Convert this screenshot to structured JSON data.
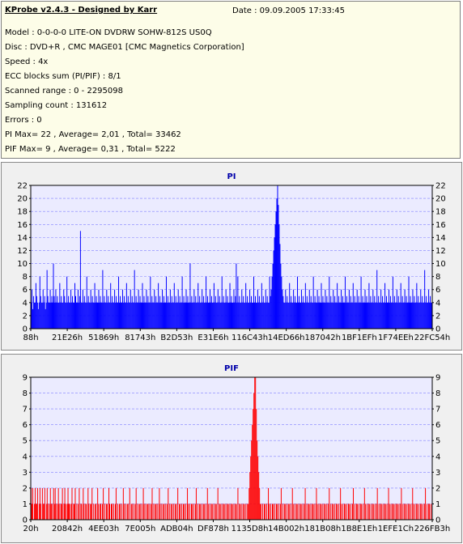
{
  "info": {
    "title": "KProbe v2.4.3 - Designed by Karr",
    "date": "Date : 09.09.2005 17:33:45",
    "lines": [
      "Model : 0-0-0-0 LITE-ON DVDRW SOHW-812S  US0Q",
      "Disc : DVD+R , CMC MAGE01 [CMC Magnetics Corporation]",
      "Speed : 4x",
      "ECC blocks sum (PI/PIF) : 8/1",
      "Scanned range : 0 - 2295098",
      "Sampling count : 131612",
      "Errors : 0",
      "PI Max= 22 , Average= 2,01 , Total= 33462",
      "PIF Max= 9 , Average= 0,31 , Total= 5222"
    ]
  },
  "colors": {
    "info_bg": "#fdfde8",
    "panel_bg": "#f0f0f0",
    "plot_bg": "#ebebff",
    "pi_bar": "#0000ff",
    "pif_bar": "#ff0000",
    "grid": "#8080ff",
    "title": "#0000aa"
  },
  "chart_data": [
    {
      "type": "bar",
      "title": "PI",
      "xlabel": "",
      "ylabel": "",
      "ylim": [
        0,
        22
      ],
      "yticks": [
        0,
        2,
        4,
        6,
        8,
        10,
        12,
        14,
        16,
        18,
        20,
        22
      ],
      "x_tick_labels": [
        "88h",
        "21E26h",
        "51869h",
        "81743h",
        "B2D53h",
        "E31E6h",
        "116C43h",
        "14ED66h",
        "187042h",
        "1BF1EFh",
        "1F74EEh",
        "22FC54h"
      ],
      "x_range": [
        0,
        2295098
      ],
      "grid": "horizontal dashed",
      "baseline_level": 4,
      "peak_position": 1372518,
      "peak_value": 22,
      "series": [
        {
          "values": [
            4,
            6,
            3,
            5,
            4,
            4,
            7,
            5,
            4,
            3,
            4,
            8,
            5,
            4,
            4,
            6,
            4,
            5,
            3,
            4,
            9,
            5,
            4,
            4,
            6,
            4,
            5,
            4,
            10,
            5,
            4,
            6,
            4,
            5,
            4,
            4,
            7,
            4,
            5,
            4,
            4,
            6,
            5,
            4,
            4,
            8,
            4,
            5,
            4,
            4,
            6,
            4,
            5,
            4,
            4,
            7,
            5,
            4,
            4,
            6,
            4,
            5,
            15,
            4,
            4,
            6,
            4,
            5,
            4,
            4,
            8,
            4,
            5,
            4,
            4,
            6,
            4,
            5,
            4,
            4,
            7,
            4,
            5,
            4,
            4,
            6,
            4,
            5,
            4,
            4,
            9,
            4,
            5,
            4,
            4,
            6,
            4,
            5,
            4,
            4,
            7,
            4,
            5,
            4,
            4,
            6,
            4,
            5,
            4,
            4,
            8,
            4,
            5,
            4,
            4,
            6,
            4,
            5,
            4,
            4,
            7,
            4,
            5,
            4,
            4,
            6,
            4,
            5,
            4,
            4,
            9,
            4,
            5,
            4,
            4,
            6,
            4,
            5,
            4,
            4,
            7,
            4,
            5,
            4,
            4,
            6,
            4,
            5,
            4,
            4,
            8,
            4,
            5,
            4,
            4,
            6,
            4,
            5,
            4,
            4,
            7,
            4,
            5,
            4,
            4,
            6,
            4,
            5,
            4,
            4,
            8,
            4,
            5,
            4,
            4,
            6,
            4,
            5,
            4,
            4,
            7,
            4,
            5,
            4,
            4,
            6,
            4,
            5,
            4,
            4,
            8,
            4,
            5,
            4,
            4,
            6,
            4,
            5,
            4,
            4,
            10,
            4,
            5,
            4,
            4,
            6,
            4,
            5,
            4,
            4,
            7,
            4,
            5,
            4,
            4,
            6,
            4,
            5,
            4,
            4,
            8,
            4,
            5,
            4,
            4,
            6,
            4,
            5,
            4,
            4,
            7,
            4,
            5,
            4,
            4,
            6,
            4,
            5,
            4,
            4,
            8,
            4,
            5,
            4,
            4,
            6,
            4,
            5,
            4,
            4,
            7,
            4,
            5,
            4,
            4,
            6,
            4,
            5,
            10,
            4,
            8,
            4,
            5,
            4,
            4,
            6,
            4,
            5,
            4,
            4,
            7,
            4,
            5,
            4,
            4,
            6,
            4,
            5,
            4,
            4,
            8,
            4,
            5,
            4,
            4,
            6,
            4,
            5,
            4,
            4,
            7,
            4,
            5,
            4,
            4,
            6,
            4,
            5,
            4,
            4,
            8,
            5,
            6,
            8,
            10,
            12,
            14,
            16,
            18,
            20,
            22,
            19,
            16,
            13,
            10,
            8,
            6,
            5,
            4,
            4,
            6,
            4,
            5,
            4,
            4,
            7,
            4,
            5,
            4,
            4,
            6,
            4,
            5,
            4,
            4,
            8,
            4,
            5,
            4,
            4,
            6,
            4,
            5,
            4,
            4,
            7,
            4,
            5,
            4,
            4,
            6,
            4,
            5,
            4,
            4,
            8,
            4,
            5,
            4,
            4,
            6,
            4,
            5,
            4,
            4,
            7,
            4,
            5,
            4,
            4,
            6,
            4,
            5,
            4,
            4,
            8,
            4,
            5,
            4,
            4,
            6,
            4,
            5,
            4,
            4,
            7,
            4,
            5,
            4,
            4,
            6,
            4,
            5,
            4,
            4,
            8,
            4,
            5,
            4,
            4,
            6,
            4,
            5,
            4,
            4,
            7,
            4,
            5,
            4,
            4,
            6,
            4,
            5,
            4,
            4,
            8,
            4,
            5,
            4,
            4,
            6,
            4,
            5,
            4,
            4,
            7,
            4,
            5,
            4,
            4,
            6,
            4,
            5,
            4,
            4,
            9,
            4,
            5,
            4,
            4,
            6,
            4,
            5,
            4,
            4,
            7,
            4,
            5,
            4,
            4,
            6,
            4,
            5,
            4,
            4,
            8,
            4,
            5,
            4,
            4,
            6,
            4,
            5,
            4,
            4,
            7,
            4,
            5,
            4,
            4,
            6,
            4,
            5,
            4,
            4,
            8,
            4,
            5,
            4,
            4,
            6,
            4,
            5,
            4,
            4,
            7,
            4,
            5,
            4,
            4,
            6,
            4,
            5,
            4,
            4,
            9,
            4,
            5,
            4,
            4,
            6,
            4,
            5,
            4,
            4
          ]
        }
      ]
    },
    {
      "type": "bar",
      "title": "PIF",
      "xlabel": "",
      "ylabel": "",
      "ylim": [
        0,
        9
      ],
      "yticks": [
        0,
        1,
        2,
        3,
        4,
        5,
        6,
        7,
        8,
        9
      ],
      "x_tick_labels": [
        "20h",
        "20842h",
        "4EE03h",
        "7E005h",
        "ADB04h",
        "DF878h",
        "1135D8h",
        "14B002h",
        "181B08h",
        "1B8E1Eh",
        "1EFE1Ch",
        "226FB3h"
      ],
      "x_range": [
        0,
        2295098
      ],
      "grid": "horizontal dashed",
      "peak_position": 1372518,
      "peak_value": 9,
      "series": [
        {
          "values": [
            2,
            1,
            2,
            0,
            1,
            2,
            1,
            1,
            2,
            0,
            1,
            2,
            1,
            0,
            2,
            1,
            1,
            2,
            0,
            1,
            2,
            1,
            0,
            1,
            2,
            1,
            1,
            0,
            2,
            1,
            2,
            1,
            0,
            1,
            2,
            1,
            0,
            1,
            1,
            2,
            0,
            1,
            2,
            1,
            0,
            1,
            2,
            1,
            1,
            0,
            1,
            2,
            0,
            1,
            1,
            2,
            0,
            1,
            0,
            1,
            2,
            0,
            1,
            1,
            0,
            2,
            1,
            0,
            1,
            1,
            0,
            2,
            1,
            0,
            1,
            1,
            2,
            0,
            1,
            0,
            1,
            1,
            0,
            2,
            1,
            0,
            1,
            1,
            0,
            1,
            2,
            0,
            1,
            0,
            1,
            1,
            0,
            2,
            1,
            0,
            1,
            1,
            0,
            1,
            0,
            1,
            2,
            0,
            1,
            0,
            1,
            1,
            0,
            1,
            0,
            2,
            1,
            0,
            1,
            0,
            1,
            1,
            0,
            2,
            0,
            1,
            1,
            0,
            1,
            0,
            1,
            2,
            0,
            1,
            0,
            1,
            1,
            0,
            1,
            0,
            2,
            1,
            0,
            1,
            0,
            1,
            1,
            0,
            1,
            0,
            1,
            2,
            0,
            1,
            0,
            1,
            1,
            0,
            1,
            0,
            2,
            1,
            0,
            1,
            0,
            1,
            1,
            0,
            1,
            0,
            1,
            2,
            0,
            1,
            0,
            1,
            1,
            0,
            1,
            0,
            1,
            1,
            0,
            2,
            0,
            1,
            1,
            0,
            1,
            0,
            1,
            1,
            0,
            1,
            0,
            2,
            1,
            0,
            1,
            0,
            1,
            1,
            0,
            1,
            0,
            1,
            2,
            0,
            1,
            0,
            1,
            1,
            0,
            1,
            0,
            1,
            1,
            0,
            1,
            0,
            2,
            1,
            0,
            1,
            0,
            1,
            1,
            0,
            1,
            0,
            1,
            1,
            0,
            2,
            0,
            1,
            1,
            0,
            1,
            0,
            1,
            1,
            0,
            1,
            0,
            1,
            1,
            0,
            1,
            0,
            1,
            1,
            0,
            1,
            0,
            1,
            1,
            0,
            2,
            0,
            1,
            1,
            0,
            1,
            0,
            1,
            1,
            0,
            1,
            0,
            1,
            1,
            2,
            3,
            4,
            5,
            6,
            7,
            8,
            9,
            9,
            7,
            5,
            4,
            3,
            2,
            1,
            1,
            0,
            1,
            0,
            1,
            1,
            0,
            1,
            0,
            2,
            1,
            0,
            1,
            0,
            1,
            1,
            0,
            1,
            0,
            1,
            1,
            0,
            1,
            0,
            1,
            2,
            0,
            1,
            0,
            1,
            1,
            0,
            1,
            0,
            1,
            1,
            0,
            1,
            0,
            2,
            1,
            0,
            1,
            0,
            1,
            1,
            0,
            1,
            0,
            1,
            1,
            0,
            1,
            0,
            1,
            2,
            0,
            1,
            0,
            1,
            1,
            0,
            1,
            0,
            1,
            1,
            0,
            1,
            0,
            2,
            1,
            0,
            1,
            0,
            1,
            1,
            0,
            1,
            0,
            1,
            1,
            0,
            1,
            0,
            1,
            2,
            0,
            1,
            0,
            1,
            1,
            0,
            1,
            0,
            1,
            1,
            0,
            1,
            0,
            2,
            1,
            0,
            1,
            0,
            1,
            1,
            0,
            1,
            0,
            1,
            1,
            0,
            1,
            0,
            1,
            2,
            0,
            1,
            0,
            1,
            1,
            0,
            1,
            0,
            1,
            1,
            0,
            1,
            0,
            2,
            1,
            0,
            1,
            0,
            1,
            1,
            0,
            1,
            0,
            1,
            1,
            0,
            1,
            0,
            1,
            2,
            0,
            1,
            0,
            1,
            1,
            0,
            1,
            0,
            1,
            1,
            0,
            1,
            0,
            2,
            1,
            0,
            1,
            0,
            1,
            1,
            0,
            1,
            0,
            1,
            1,
            0,
            1,
            0,
            1,
            2,
            0,
            1,
            0,
            1,
            1,
            0,
            1,
            0,
            1,
            1,
            0,
            1,
            0,
            2,
            1,
            0,
            1,
            0,
            1,
            1,
            0,
            1,
            0,
            1,
            1,
            0,
            1,
            0,
            1,
            2,
            0,
            1,
            0,
            1,
            1,
            0,
            1,
            0
          ]
        }
      ]
    }
  ]
}
